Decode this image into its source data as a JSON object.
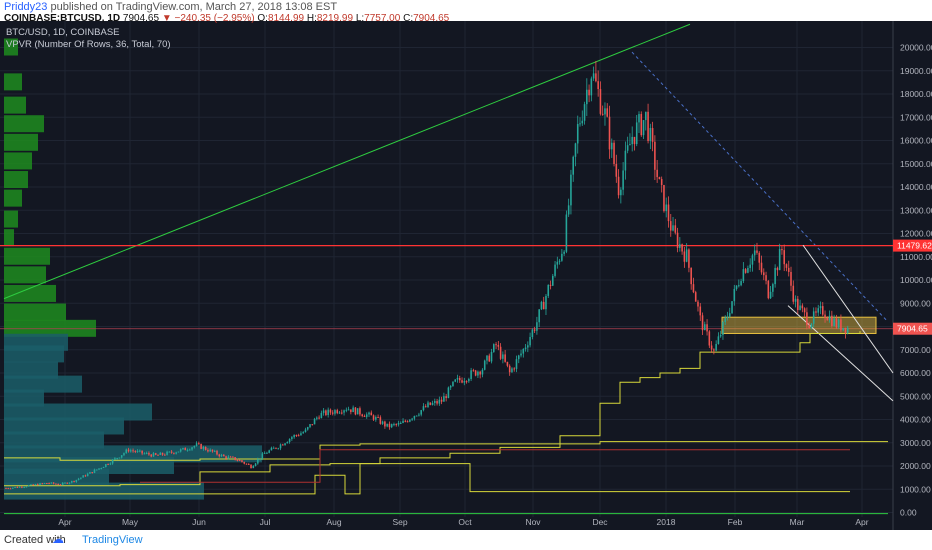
{
  "header": {
    "user": "Priddy23",
    "published": " published on TradingView.com, March 27, 2018 13:08 EST",
    "symbol": "COINBASE:BTCUSD, 1D",
    "last": "7904.65",
    "change": "−240.35 (−2.95%)",
    "o_label": "O:",
    "o": "8144.99",
    "h_label": "H:",
    "h": "8219.99",
    "l_label": "L:",
    "l": "7757.00",
    "c_label": "C:",
    "c": "7904.65"
  },
  "legend": {
    "line1": "BTC/USD, 1D, COINBASE",
    "line2": "VPVR (Number Of Rows, 36, Total, 70)"
  },
  "footer": {
    "created": "Created with",
    "brand": "TradingView"
  },
  "colors": {
    "background": "#131722",
    "up": "#26a69a",
    "down": "#ef5350",
    "vp_upper": "#1e8c1e",
    "vp_lower": "#1b5e68",
    "support": "#ff3333",
    "trend": "#2ecc40",
    "ma_yellow": "#d8d83a",
    "zone": "#e8c040"
  },
  "chart_data": {
    "type": "candlestick",
    "title": "BTC/USD, 1D, COINBASE",
    "x_labels": [
      "Apr",
      "May",
      "Jun",
      "Jul",
      "Aug",
      "Sep",
      "Oct",
      "Nov",
      "Dec",
      "2018",
      "Feb",
      "Mar",
      "Apr"
    ],
    "y_ticks": [
      0,
      1000,
      2000,
      3000,
      4000,
      5000,
      6000,
      7000,
      8000,
      9000,
      10000,
      11000,
      12000,
      13000,
      14000,
      15000,
      16000,
      17000,
      18000,
      19000,
      20000
    ],
    "ylim": [
      -200,
      20300
    ],
    "scale": "linear",
    "price_labels": [
      {
        "value": 11479.62,
        "text": "11479.62",
        "color": "#ff3333"
      },
      {
        "value": 7904.65,
        "text": "7904.65",
        "color": "#ef5350"
      }
    ],
    "weekly_close": [
      1050,
      1100,
      1180,
      1270,
      1210,
      1360,
      1650,
      1950,
      2300,
      2700,
      2550,
      2450,
      2560,
      2700,
      2900,
      2650,
      2400,
      2280,
      1980,
      2550,
      2850,
      3250,
      3500,
      4200,
      4350,
      4500,
      4300,
      4100,
      3700,
      3800,
      4200,
      4600,
      4800,
      5600,
      5900,
      6200,
      7200,
      6000,
      7000,
      8200,
      9900,
      11600,
      16500,
      19000,
      17100,
      14000,
      16200,
      17000,
      14000,
      12000,
      11000,
      8300,
      6900,
      8500,
      10300,
      11200,
      9500,
      11300,
      9000,
      8200,
      8700,
      8100,
      7900
    ]
  }
}
